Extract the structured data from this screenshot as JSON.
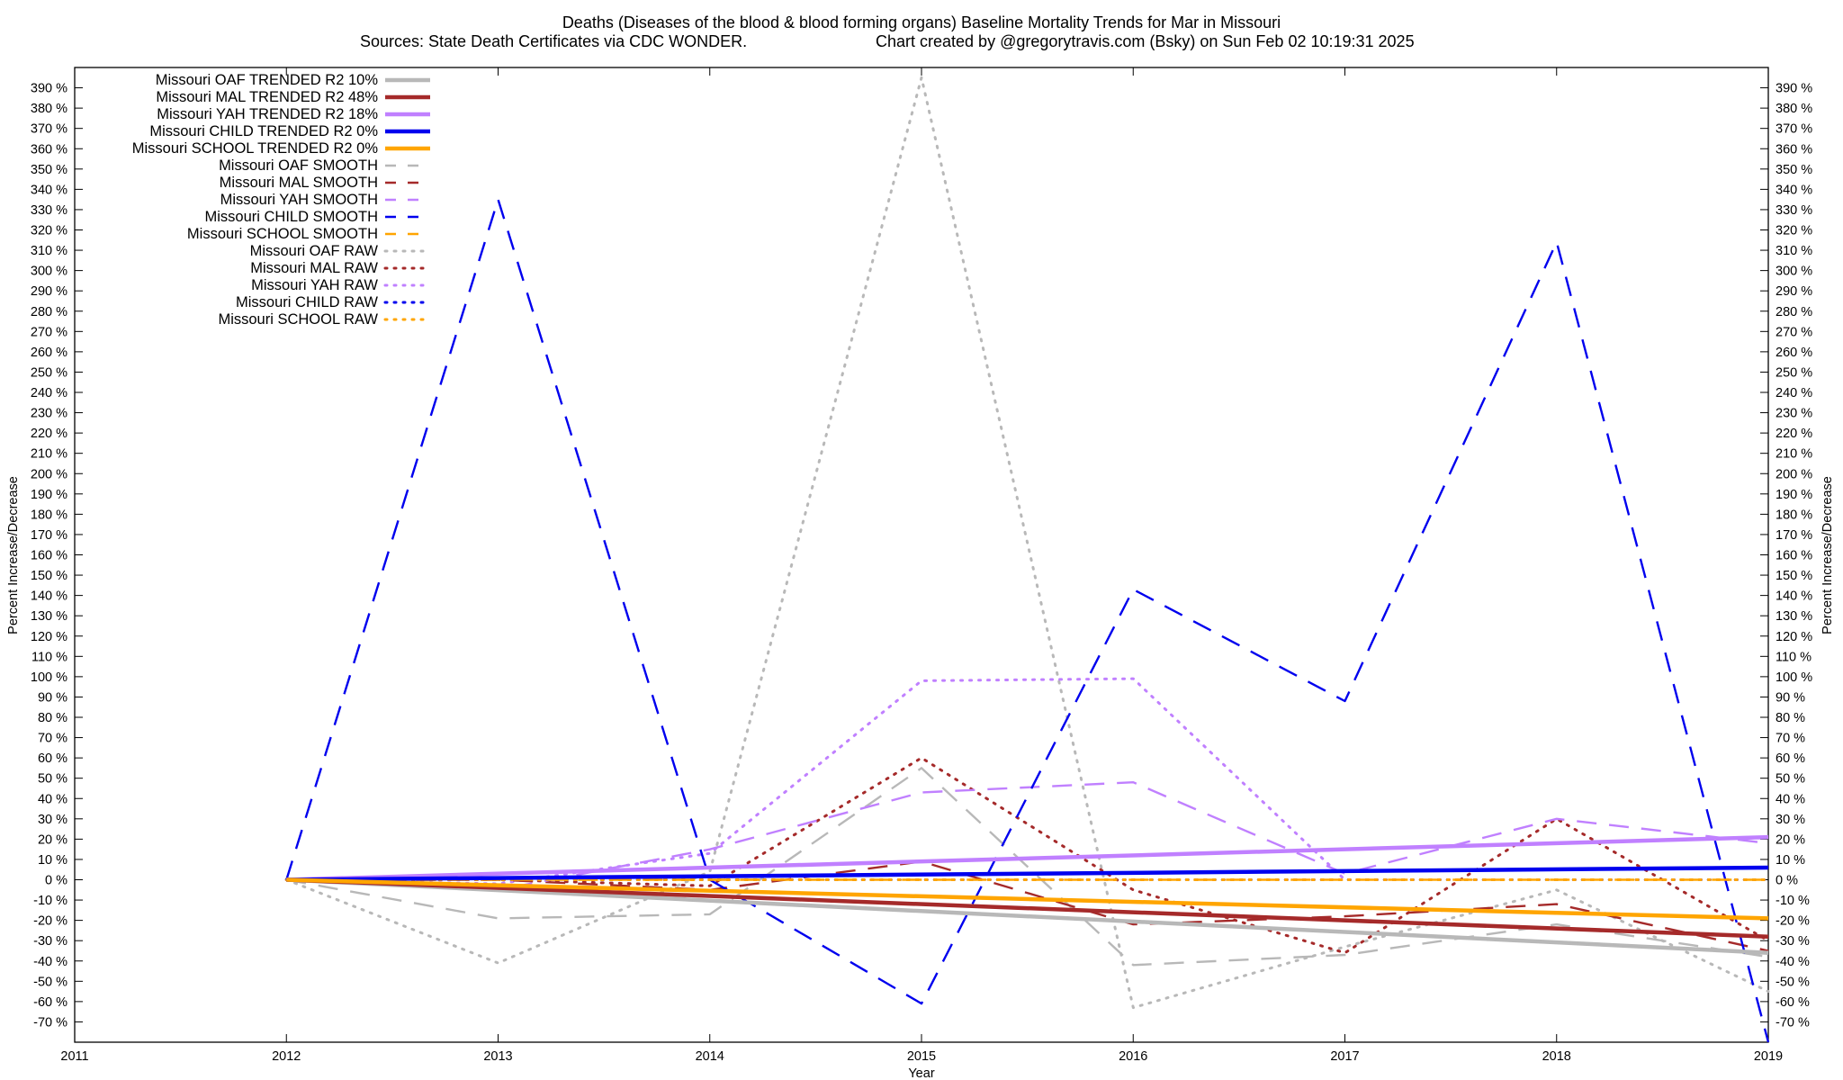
{
  "chart_data": {
    "type": "line",
    "title": "Deaths (Diseases of the blood & blood forming organs)  Baseline Mortality Trends for Mar in Missouri",
    "subtitle_left": "Sources: State Death Certificates via CDC WONDER.",
    "subtitle_right": "Chart created by @gregorytravis.com (Bsky) on Sun Feb 02 10:19:31 2025",
    "xlabel": "Year",
    "ylabel": "Percent Increase/Decrease",
    "y2label": "Percent Increase/Decrease",
    "xlim": [
      2011,
      2019
    ],
    "ylim": [
      -80,
      400
    ],
    "x_ticks": [
      2011,
      2012,
      2013,
      2014,
      2015,
      2016,
      2017,
      2018,
      2019
    ],
    "y_ticks": [
      -70,
      -60,
      -50,
      -40,
      -30,
      -20,
      -10,
      0,
      10,
      20,
      30,
      40,
      50,
      60,
      70,
      80,
      90,
      100,
      110,
      120,
      130,
      140,
      150,
      160,
      170,
      180,
      190,
      200,
      210,
      220,
      230,
      240,
      250,
      260,
      270,
      280,
      290,
      300,
      310,
      320,
      330,
      340,
      350,
      360,
      370,
      380,
      390
    ],
    "y_tick_suffix": " %",
    "grid": false,
    "legend_position": "top-left",
    "series": [
      {
        "name": "Missouri OAF TRENDED R2  10%",
        "style": "solid",
        "color": "#b8b8b8",
        "x": [
          2012,
          2019
        ],
        "y": [
          0,
          -36
        ]
      },
      {
        "name": "Missouri MAL TRENDED R2  48%",
        "style": "solid",
        "color": "#a52a2a",
        "x": [
          2012,
          2019
        ],
        "y": [
          0,
          -28
        ]
      },
      {
        "name": "Missouri YAH TRENDED R2  18%",
        "style": "solid",
        "color": "#c080ff",
        "x": [
          2012,
          2019
        ],
        "y": [
          0,
          21
        ]
      },
      {
        "name": "Missouri CHILD TRENDED R2   0%",
        "style": "solid",
        "color": "#0000ee",
        "x": [
          2012,
          2019
        ],
        "y": [
          0,
          6
        ]
      },
      {
        "name": "Missouri SCHOOL TRENDED R2   0%",
        "style": "solid",
        "color": "#ffa500",
        "x": [
          2012,
          2019
        ],
        "y": [
          0,
          -19
        ]
      },
      {
        "name": "Missouri OAF SMOOTH",
        "style": "dashed",
        "color": "#b8b8b8",
        "x": [
          2012,
          2013,
          2014,
          2015,
          2016,
          2017,
          2018,
          2019
        ],
        "y": [
          0,
          -19,
          -17,
          55,
          -42,
          -37,
          -22,
          -38
        ]
      },
      {
        "name": "Missouri MAL SMOOTH",
        "style": "dashed",
        "color": "#a52a2a",
        "x": [
          2012,
          2013,
          2014,
          2015,
          2016,
          2017,
          2018,
          2019
        ],
        "y": [
          0,
          0,
          -5,
          9,
          -22,
          -18,
          -12,
          -35
        ]
      },
      {
        "name": "Missouri YAH SMOOTH",
        "style": "dashed",
        "color": "#c080ff",
        "x": [
          2012,
          2013,
          2014,
          2015,
          2016,
          2017,
          2018,
          2019
        ],
        "y": [
          0,
          -5,
          15,
          43,
          48,
          3,
          30,
          18
        ]
      },
      {
        "name": "Missouri CHILD SMOOTH",
        "style": "dashed",
        "color": "#0000ee",
        "x": [
          2012,
          2013,
          2014,
          2015,
          2016,
          2017,
          2018,
          2019
        ],
        "y": [
          0,
          335,
          0,
          -61,
          143,
          88,
          314,
          -80
        ]
      },
      {
        "name": "Missouri SCHOOL SMOOTH",
        "style": "dashed",
        "color": "#ffa500",
        "x": [
          2012,
          2013,
          2014,
          2015,
          2016,
          2017,
          2018,
          2019
        ],
        "y": [
          0,
          0,
          0,
          0,
          0,
          0,
          0,
          0
        ]
      },
      {
        "name": "Missouri OAF RAW",
        "style": "dotted",
        "color": "#b8b8b8",
        "x": [
          2012,
          2013,
          2014,
          2015,
          2016,
          2017,
          2018,
          2019
        ],
        "y": [
          0,
          -41,
          4,
          395,
          -63,
          -33,
          -5,
          -55
        ]
      },
      {
        "name": "Missouri MAL RAW",
        "style": "dotted",
        "color": "#a52a2a",
        "x": [
          2012,
          2013,
          2014,
          2015,
          2016,
          2017,
          2018,
          2019
        ],
        "y": [
          0,
          0,
          -3,
          60,
          -5,
          -36,
          30,
          -30
        ]
      },
      {
        "name": "Missouri YAH RAW",
        "style": "dotted",
        "color": "#c080ff",
        "x": [
          2012,
          2013,
          2014,
          2015,
          2016,
          2017,
          2018,
          2019
        ],
        "y": [
          0,
          -2,
          13,
          98,
          99,
          0,
          0,
          0
        ]
      },
      {
        "name": "Missouri CHILD RAW",
        "style": "dotted",
        "color": "#0000ee",
        "x": [
          2012,
          2013,
          2014,
          2015,
          2016,
          2017,
          2018,
          2019
        ],
        "y": [
          0,
          0,
          0,
          0,
          0,
          0,
          0,
          0
        ]
      },
      {
        "name": "Missouri SCHOOL RAW",
        "style": "dotted",
        "color": "#ffa500",
        "x": [
          2012,
          2013,
          2014,
          2015,
          2016,
          2017,
          2018,
          2019
        ],
        "y": [
          0,
          0,
          0,
          0,
          0,
          0,
          0,
          0
        ]
      }
    ]
  }
}
